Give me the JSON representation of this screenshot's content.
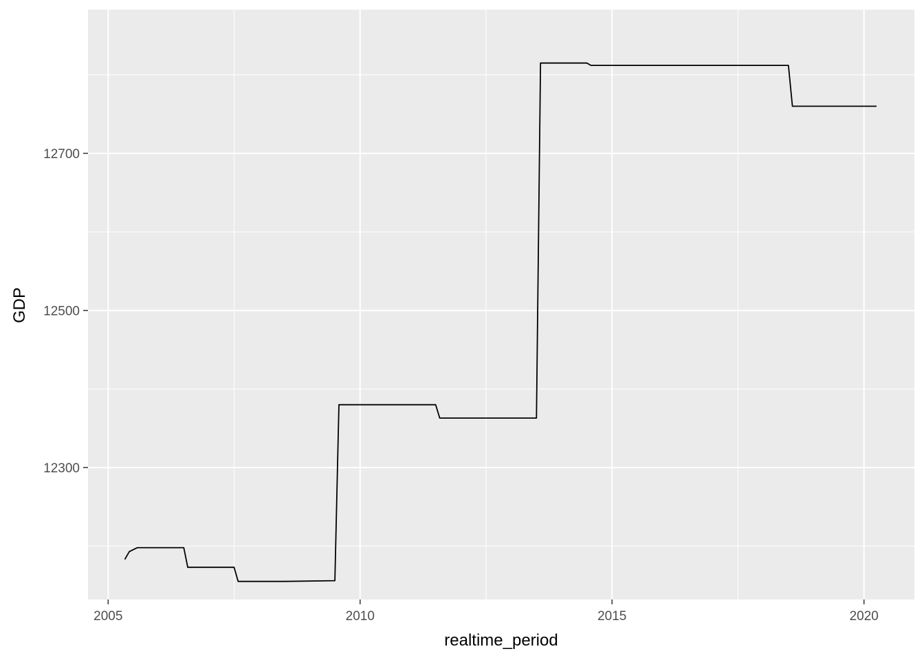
{
  "chart_data": {
    "type": "line",
    "title": "",
    "xlabel": "realtime_period",
    "ylabel": "GDP",
    "xlim": [
      2004.6,
      2021.0
    ],
    "ylim": [
      12132,
      12883
    ],
    "x_ticks": [
      2005,
      2010,
      2015,
      2020
    ],
    "x_tick_labels": [
      "2005",
      "2010",
      "2015",
      "2020"
    ],
    "y_ticks": [
      12300,
      12500,
      12700
    ],
    "y_tick_labels": [
      "12300",
      "12500",
      "12700"
    ],
    "grid": true,
    "legend": "none",
    "colors": {
      "panel": "#ebebeb",
      "grid": "#ffffff",
      "line": "#000000",
      "tick_text": "#4d4d4d",
      "title_text": "#000000"
    },
    "series": [
      {
        "x": [
          2005.33,
          2005.42,
          2005.58,
          2005.67,
          2006.33,
          2006.5,
          2006.58,
          2007.17,
          2007.5,
          2007.58,
          2008.5,
          2009.5,
          2009.58,
          2010.5,
          2011.5,
          2011.58,
          2012.5,
          2013.5,
          2013.58,
          2014.33,
          2014.5,
          2014.58,
          2015.5,
          2017.5,
          2018.5,
          2018.58,
          2020.25
        ],
        "y": [
          12183,
          12193,
          12198,
          12198,
          12198,
          12198,
          12173,
          12173,
          12173,
          12155,
          12155,
          12156,
          12380,
          12380,
          12380,
          12363,
          12363,
          12363,
          12815,
          12815,
          12815,
          12812,
          12812,
          12812,
          12812,
          12760,
          12760
        ]
      }
    ]
  }
}
